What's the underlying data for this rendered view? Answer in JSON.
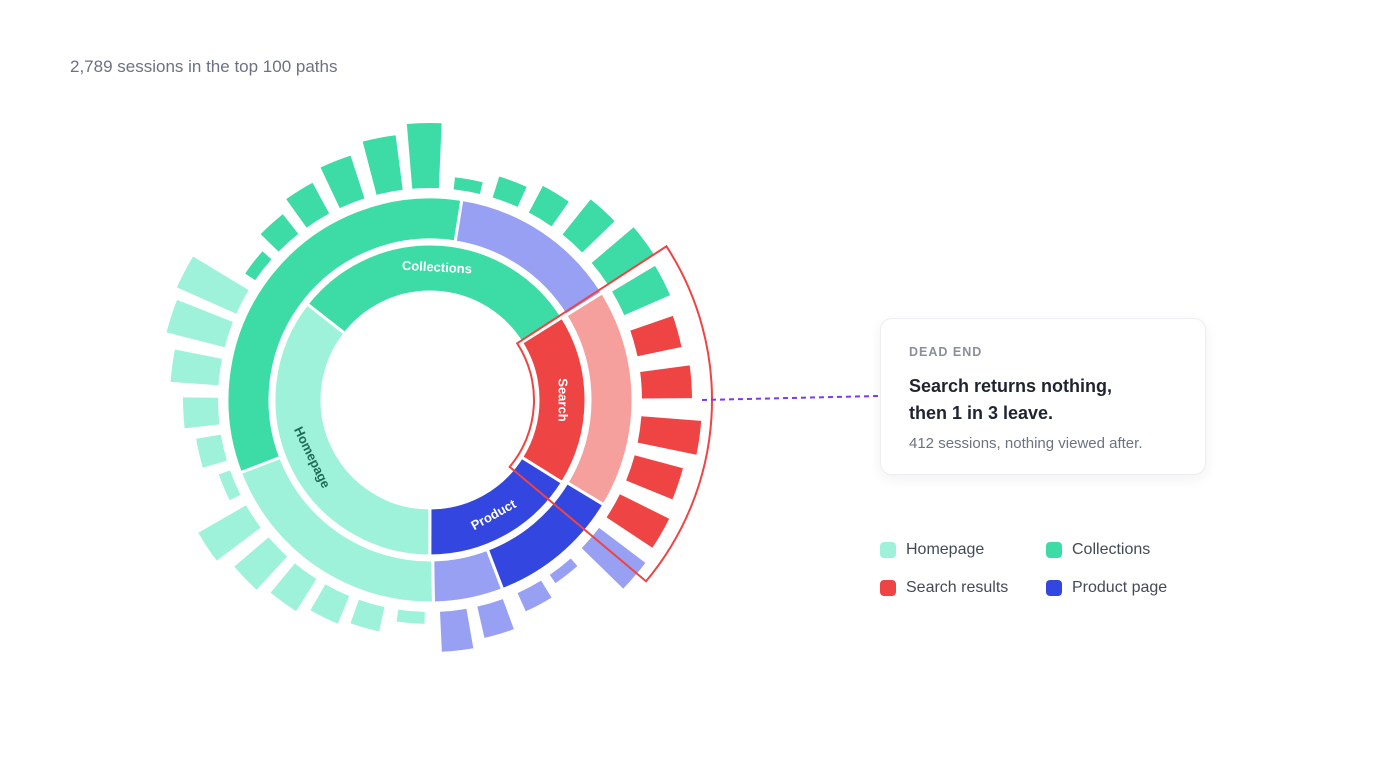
{
  "chart_data": {
    "type": "sunburst",
    "title": "2,789 sessions in the top 100 paths",
    "rings": [
      {
        "labels": [
          "Collections",
          "Search",
          "Product",
          "Homepage"
        ],
        "values": [
          852,
          496,
          450,
          991
        ],
        "colors": [
          "#3ddba5",
          "#ef4444",
          "#3346e0",
          "#9ef2d9"
        ]
      },
      {
        "values": [
          930,
          380,
          488,
          294,
          155,
          542
        ],
        "colors": [
          "#3ddba5",
          "#97a0f3",
          "#f5a09c",
          "#3346e0",
          "#97a0f3",
          "#9ef2d9"
        ]
      },
      {
        "values": [
          65,
          60,
          48,
          35,
          25,
          12,
          55,
          45,
          38,
          30,
          25,
          12,
          40,
          32,
          20,
          10,
          58,
          55,
          50,
          60,
          50,
          45,
          50,
          55,
          45,
          30,
          22,
          12,
          65,
          55,
          45,
          35,
          25,
          12
        ],
        "colors": [
          "#9ef2d9",
          "#9ef2d9",
          "#9ef2d9",
          "#9ef2d9",
          "#9ef2d9",
          "#9ef2d9",
          "#9ef2d9",
          "#9ef2d9",
          "#9ef2d9",
          "#9ef2d9",
          "#9ef2d9",
          "#9ef2d9",
          "#97a0f3",
          "#97a0f3",
          "#97a0f3",
          "#97a0f3",
          "#97a0f3",
          "#ef4444",
          "#ef4444",
          "#ef4444",
          "#ef4444",
          "#ef4444",
          "#3ddba5",
          "#3ddba5",
          "#3ddba5",
          "#3ddba5",
          "#3ddba5",
          "#3ddba5",
          "#3ddba5",
          "#3ddba5",
          "#3ddba5",
          "#3ddba5",
          "#3ddba5",
          "#3ddba5"
        ]
      }
    ],
    "annotation": {
      "kicker": "DEAD END",
      "headline": "Search returns nothing, then 1 in 3 leave.",
      "detail": "412 sessions, nothing viewed after."
    },
    "legend": [
      {
        "name": "Homepage",
        "color": "#9ef2d9"
      },
      {
        "name": "Collections",
        "color": "#3ddba5"
      },
      {
        "name": "Search results",
        "color": "#ef4444"
      },
      {
        "name": "Product page",
        "color": "#3346e0"
      }
    ]
  }
}
